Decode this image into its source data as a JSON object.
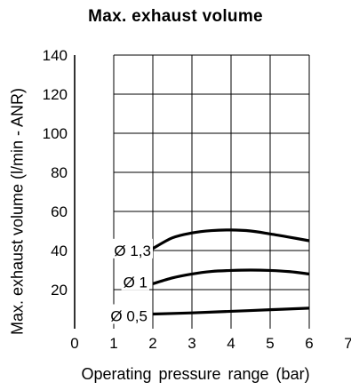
{
  "chart_data": {
    "type": "line",
    "title": "Max. exhaust volume",
    "xlabel": "Operating pressure range (bar)",
    "ylabel": "Max. exhaust volume (l/min - ANR)",
    "xlim": [
      0,
      7
    ],
    "ylim": [
      0,
      140
    ],
    "xticks": [
      "0",
      "1",
      "2",
      "3",
      "4",
      "5",
      "6",
      "7"
    ],
    "yticks": [
      "20",
      "40",
      "60",
      "80",
      "100",
      "120",
      "140"
    ],
    "grid": true,
    "series": [
      {
        "name": "Ø 1,3",
        "x": [
          2,
          2.5,
          3,
          3.5,
          4,
          4.5,
          5,
          5.5,
          6
        ],
        "values": [
          41,
          46.5,
          49,
          50.2,
          50.5,
          50,
          48.5,
          46.8,
          45
        ]
      },
      {
        "name": "Ø 1",
        "x": [
          2,
          2.5,
          3,
          3.5,
          4,
          4.5,
          5,
          5.5,
          6
        ],
        "values": [
          23,
          26,
          28,
          29.3,
          29.8,
          30,
          29.8,
          29.2,
          28
        ]
      },
      {
        "name": "Ø 0,5",
        "x": [
          2,
          3,
          4,
          5,
          6
        ],
        "values": [
          7.5,
          8.1,
          8.9,
          9.7,
          10.5
        ]
      }
    ]
  }
}
